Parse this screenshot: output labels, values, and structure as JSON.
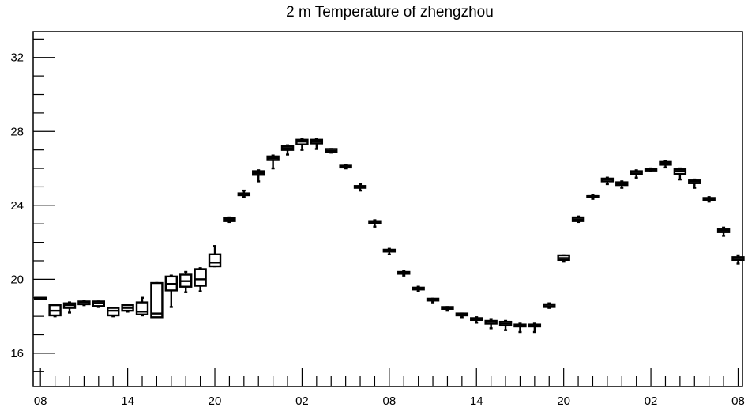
{
  "chart_data": {
    "type": "boxplot",
    "title": "2 m Temperature of zhengzhou",
    "xlabel": "",
    "ylabel": "",
    "ylim": [
      14.2,
      33.4
    ],
    "xlim": [
      -0.5,
      48.3
    ],
    "y_ticks": [
      16,
      20,
      24,
      28,
      32
    ],
    "x_ticks": [
      {
        "index": 0,
        "label": "08"
      },
      {
        "index": 6,
        "label": "14"
      },
      {
        "index": 12,
        "label": "20"
      },
      {
        "index": 18,
        "label": "02"
      },
      {
        "index": 24,
        "label": "08"
      },
      {
        "index": 30,
        "label": "14"
      },
      {
        "index": 36,
        "label": "20"
      },
      {
        "index": 42,
        "label": "02"
      },
      {
        "index": 48,
        "label": "08"
      }
    ],
    "grid": false,
    "boxes": [
      {
        "x": 0,
        "min": 19.0,
        "q1": 19.0,
        "median": 19.0,
        "q3": 19.0,
        "max": 19.0
      },
      {
        "x": 1,
        "min": 18.0,
        "q1": 18.05,
        "median": 18.3,
        "q3": 18.6,
        "max": 18.6
      },
      {
        "x": 2,
        "min": 18.2,
        "q1": 18.45,
        "median": 18.6,
        "q3": 18.7,
        "max": 18.75
      },
      {
        "x": 3,
        "min": 18.6,
        "q1": 18.65,
        "median": 18.75,
        "q3": 18.8,
        "max": 18.85
      },
      {
        "x": 4,
        "min": 18.5,
        "q1": 18.55,
        "median": 18.7,
        "q3": 18.8,
        "max": 18.8
      },
      {
        "x": 5,
        "min": 18.0,
        "q1": 18.05,
        "median": 18.3,
        "q3": 18.45,
        "max": 18.45
      },
      {
        "x": 6,
        "min": 18.25,
        "q1": 18.3,
        "median": 18.45,
        "q3": 18.6,
        "max": 18.6
      },
      {
        "x": 7,
        "min": 18.05,
        "q1": 18.1,
        "median": 18.25,
        "q3": 18.75,
        "max": 19.0
      },
      {
        "x": 8,
        "min": 17.95,
        "q1": 17.95,
        "median": 18.15,
        "q3": 19.8,
        "max": 19.8
      },
      {
        "x": 9,
        "min": 18.5,
        "q1": 19.4,
        "median": 19.75,
        "q3": 20.15,
        "max": 20.2
      },
      {
        "x": 10,
        "min": 19.3,
        "q1": 19.6,
        "median": 19.9,
        "q3": 20.25,
        "max": 20.4
      },
      {
        "x": 11,
        "min": 19.35,
        "q1": 19.65,
        "median": 20.0,
        "q3": 20.55,
        "max": 20.6
      },
      {
        "x": 12,
        "min": 20.7,
        "q1": 20.7,
        "median": 20.9,
        "q3": 21.35,
        "max": 21.8
      },
      {
        "x": 13,
        "min": 23.1,
        "q1": 23.15,
        "median": 23.25,
        "q3": 23.3,
        "max": 23.35
      },
      {
        "x": 14,
        "min": 24.45,
        "q1": 24.55,
        "median": 24.6,
        "q3": 24.65,
        "max": 24.8
      },
      {
        "x": 15,
        "min": 25.3,
        "q1": 25.65,
        "median": 25.75,
        "q3": 25.85,
        "max": 25.9
      },
      {
        "x": 16,
        "min": 26.0,
        "q1": 26.45,
        "median": 26.55,
        "q3": 26.65,
        "max": 26.7
      },
      {
        "x": 17,
        "min": 26.75,
        "q1": 27.0,
        "median": 27.1,
        "q3": 27.2,
        "max": 27.25
      },
      {
        "x": 18,
        "min": 27.0,
        "q1": 27.3,
        "median": 27.45,
        "q3": 27.55,
        "max": 27.6
      },
      {
        "x": 19,
        "min": 27.05,
        "q1": 27.35,
        "median": 27.45,
        "q3": 27.55,
        "max": 27.6
      },
      {
        "x": 20,
        "min": 26.85,
        "q1": 26.9,
        "median": 26.95,
        "q3": 27.05,
        "max": 27.05
      },
      {
        "x": 21,
        "min": 26.0,
        "q1": 26.05,
        "median": 26.1,
        "q3": 26.15,
        "max": 26.2
      },
      {
        "x": 22,
        "min": 24.8,
        "q1": 24.95,
        "median": 25.0,
        "q3": 25.05,
        "max": 25.15
      },
      {
        "x": 23,
        "min": 22.85,
        "q1": 23.05,
        "median": 23.1,
        "q3": 23.15,
        "max": 23.2
      },
      {
        "x": 24,
        "min": 21.35,
        "q1": 21.5,
        "median": 21.55,
        "q3": 21.6,
        "max": 21.65
      },
      {
        "x": 25,
        "min": 20.2,
        "q1": 20.3,
        "median": 20.35,
        "q3": 20.4,
        "max": 20.45
      },
      {
        "x": 26,
        "min": 19.35,
        "q1": 19.45,
        "median": 19.5,
        "q3": 19.55,
        "max": 19.6
      },
      {
        "x": 27,
        "min": 18.75,
        "q1": 18.85,
        "median": 18.9,
        "q3": 18.95,
        "max": 18.95
      },
      {
        "x": 28,
        "min": 18.3,
        "q1": 18.4,
        "median": 18.45,
        "q3": 18.5,
        "max": 18.5
      },
      {
        "x": 29,
        "min": 17.95,
        "q1": 18.05,
        "median": 18.1,
        "q3": 18.15,
        "max": 18.15
      },
      {
        "x": 30,
        "min": 17.65,
        "q1": 17.8,
        "median": 17.85,
        "q3": 17.9,
        "max": 17.95
      },
      {
        "x": 31,
        "min": 17.35,
        "q1": 17.6,
        "median": 17.7,
        "q3": 17.75,
        "max": 17.85
      },
      {
        "x": 32,
        "min": 17.25,
        "q1": 17.5,
        "median": 17.6,
        "q3": 17.7,
        "max": 17.75
      },
      {
        "x": 33,
        "min": 17.15,
        "q1": 17.45,
        "median": 17.5,
        "q3": 17.55,
        "max": 17.6
      },
      {
        "x": 34,
        "min": 17.15,
        "q1": 17.45,
        "median": 17.5,
        "q3": 17.55,
        "max": 17.6
      },
      {
        "x": 35,
        "min": 18.45,
        "q1": 18.5,
        "median": 18.55,
        "q3": 18.65,
        "max": 18.7
      },
      {
        "x": 36,
        "min": 20.95,
        "q1": 21.05,
        "median": 21.15,
        "q3": 21.3,
        "max": 21.3
      },
      {
        "x": 37,
        "min": 23.1,
        "q1": 23.15,
        "median": 23.25,
        "q3": 23.35,
        "max": 23.4
      },
      {
        "x": 38,
        "min": 24.35,
        "q1": 24.45,
        "median": 24.5,
        "q3": 24.5,
        "max": 24.55
      },
      {
        "x": 39,
        "min": 25.15,
        "q1": 25.3,
        "median": 25.4,
        "q3": 25.45,
        "max": 25.5
      },
      {
        "x": 40,
        "min": 24.95,
        "q1": 25.1,
        "median": 25.15,
        "q3": 25.25,
        "max": 25.3
      },
      {
        "x": 41,
        "min": 25.5,
        "q1": 25.7,
        "median": 25.8,
        "q3": 25.85,
        "max": 25.9
      },
      {
        "x": 42,
        "min": 25.85,
        "q1": 25.9,
        "median": 25.95,
        "q3": 25.95,
        "max": 26.0
      },
      {
        "x": 43,
        "min": 26.05,
        "q1": 26.2,
        "median": 26.3,
        "q3": 26.35,
        "max": 26.4
      },
      {
        "x": 44,
        "min": 25.4,
        "q1": 25.7,
        "median": 25.85,
        "q3": 25.95,
        "max": 26.0
      },
      {
        "x": 45,
        "min": 24.95,
        "q1": 25.2,
        "median": 25.3,
        "q3": 25.35,
        "max": 25.4
      },
      {
        "x": 46,
        "min": 24.2,
        "q1": 24.3,
        "median": 24.35,
        "q3": 24.4,
        "max": 24.45
      },
      {
        "x": 47,
        "min": 22.35,
        "q1": 22.55,
        "median": 22.65,
        "q3": 22.7,
        "max": 22.8
      },
      {
        "x": 48,
        "min": 20.85,
        "q1": 21.05,
        "median": 21.15,
        "q3": 21.2,
        "max": 21.3
      }
    ],
    "colors": {
      "stroke": "#000000",
      "fill": "#ffffff",
      "background": "#ffffff"
    }
  }
}
